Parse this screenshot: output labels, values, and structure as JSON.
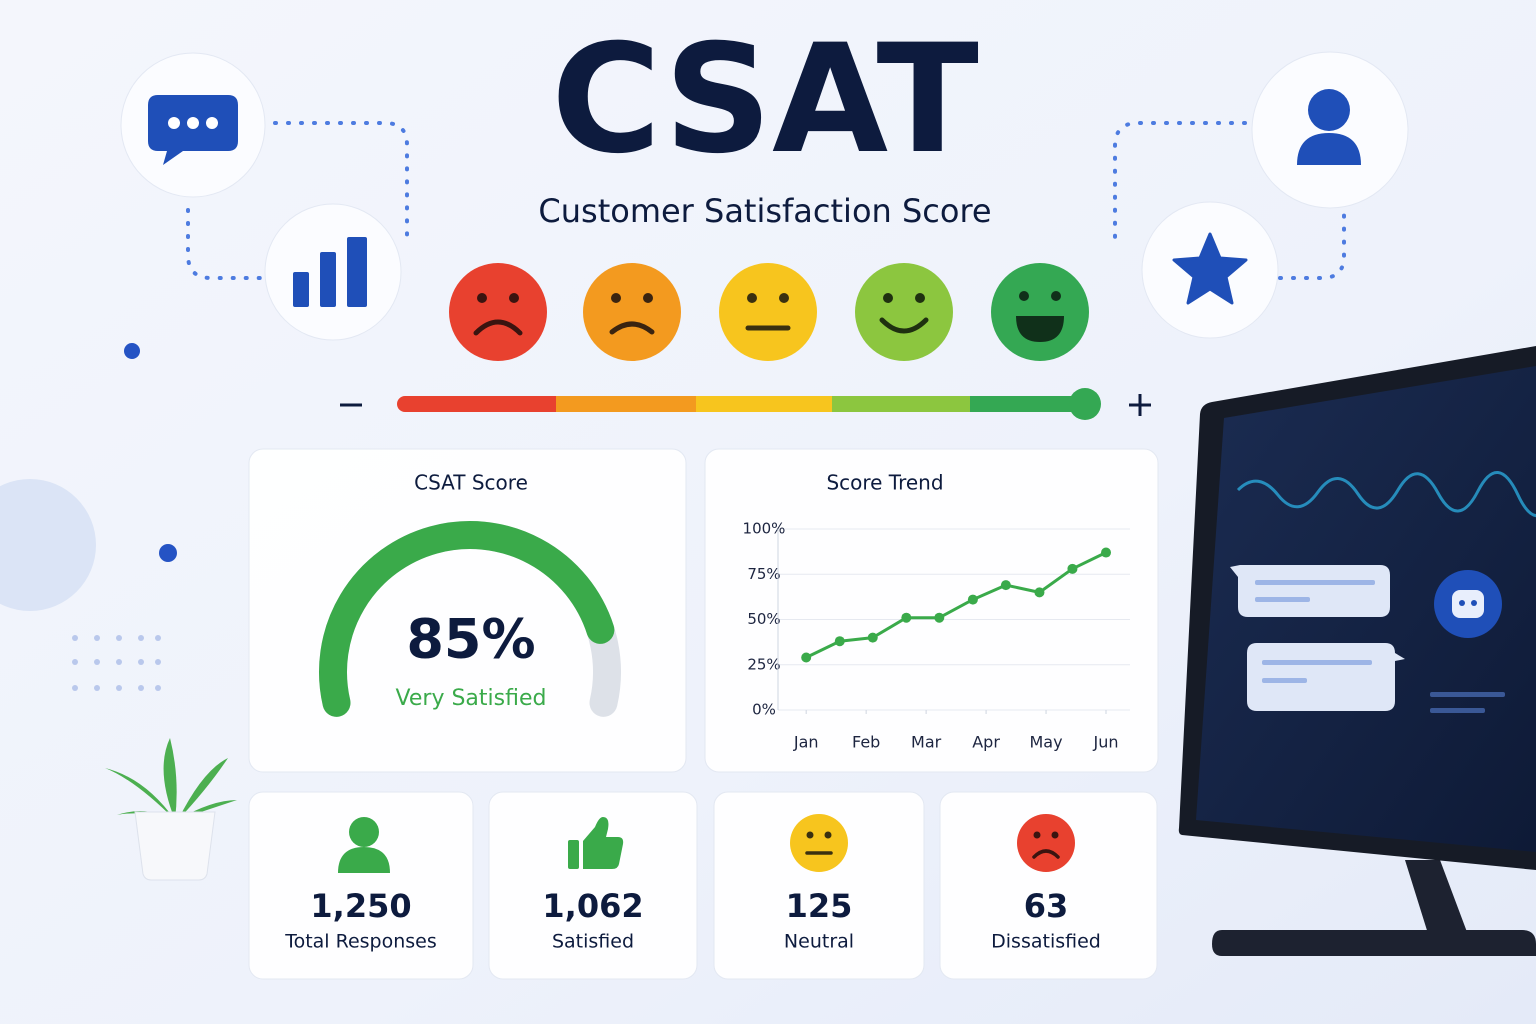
{
  "header": {
    "title": "CSAT",
    "subtitle": "Customer Satisfaction Score"
  },
  "chart_data": [
    {
      "type": "gauge",
      "title": "CSAT Score",
      "value": 85,
      "value_label": "85%",
      "label": "Very Satisfied",
      "ylim": [
        0,
        100
      ],
      "color": "#3aaa4a"
    },
    {
      "type": "line",
      "title": "Score Trend",
      "x": [
        0,
        0.56,
        1.11,
        1.67,
        2.22,
        2.78,
        3.33,
        3.89,
        4.44,
        5
      ],
      "values": [
        29,
        38,
        40,
        51,
        51,
        61,
        69,
        65,
        78,
        87
      ],
      "xlim": [
        -0.47,
        5.4
      ],
      "xticks": [
        {
          "value": 0,
          "label": "Jan"
        },
        {
          "value": 1,
          "label": "Feb"
        },
        {
          "value": 2,
          "label": "Mar"
        },
        {
          "value": 3,
          "label": "Apr"
        },
        {
          "value": 4,
          "label": "May"
        },
        {
          "value": 5,
          "label": "Jun"
        }
      ],
      "ylim": [
        0,
        100
      ],
      "yticks": [
        {
          "value": 0,
          "label": "0%"
        },
        {
          "value": 25,
          "label": "25%"
        },
        {
          "value": 50,
          "label": "50%"
        },
        {
          "value": 75,
          "label": "75%"
        },
        {
          "value": 100,
          "label": "100%"
        }
      ],
      "color": "#3aaa4a",
      "grid": true
    }
  ],
  "stats": [
    {
      "value": "1,250",
      "label": "Total Responses"
    },
    {
      "value": "1,062",
      "label": "Satisfied"
    },
    {
      "value": "125",
      "label": "Neutral"
    },
    {
      "value": "63",
      "label": "Dissatisfied"
    }
  ]
}
